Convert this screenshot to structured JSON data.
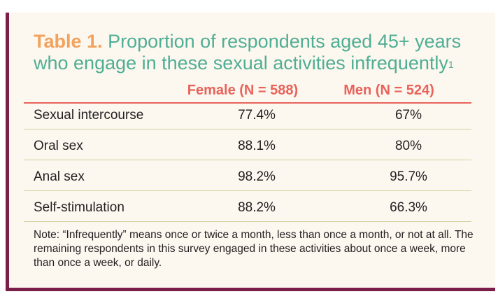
{
  "title": {
    "lead": "Table 1.",
    "text": "Proportion of respondents aged 45+ years who engage in these sexual activities infrequently",
    "superscript": "1"
  },
  "columns": [
    "Female (N = 588)",
    "Men (N = 524)"
  ],
  "rows": [
    {
      "activity": "Sexual intercourse",
      "female": "77.4%",
      "men": "67%"
    },
    {
      "activity": "Oral sex",
      "female": "88.1%",
      "men": "80%"
    },
    {
      "activity": "Anal sex",
      "female": "98.2%",
      "men": "95.7%"
    },
    {
      "activity": "Self-stimulation",
      "female": "88.2%",
      "men": "66.3%"
    }
  ],
  "note": "Note: “Infrequently” means once or twice a month, less than once a month, or not at all. The remaining respondents in this survey engaged in these activities about once a week, more than once a week, or daily.",
  "colors": {
    "title_lead": "#f2a25c",
    "title_text": "#4fae94",
    "column_header": "#e8635a",
    "frame_accent": "#7a1f4a",
    "panel_background": "#fcf7ef",
    "row_separator": "#cfd3a0"
  }
}
